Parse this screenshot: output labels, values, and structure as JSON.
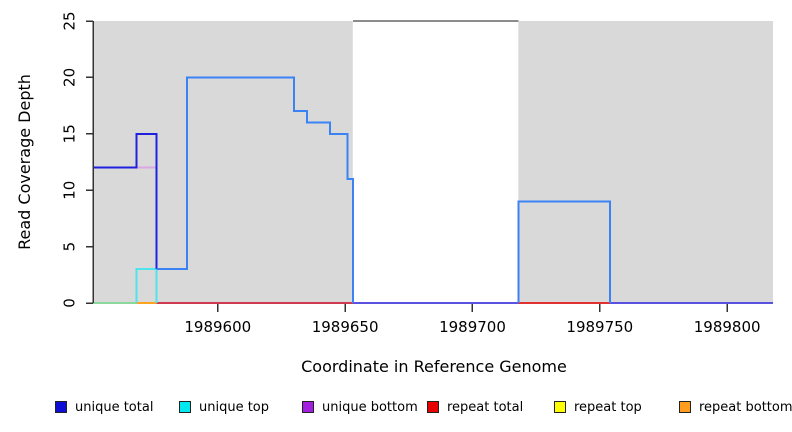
{
  "chart_data": {
    "type": "line",
    "title": "",
    "xlabel": "Coordinate in Reference Genome",
    "ylabel": "Read Coverage Depth",
    "xlim": [
      1989551,
      1989818
    ],
    "ylim": [
      0,
      25
    ],
    "xticks": [
      1989600,
      1989650,
      1989700,
      1989750,
      1989800
    ],
    "yticks": [
      0,
      5,
      10,
      15,
      20,
      25
    ],
    "grid": false,
    "legend_position": "bottom",
    "background_regions": {
      "color": "#d9d9d9",
      "ranges": [
        [
          1989551,
          1989653
        ],
        [
          1989718,
          1989818
        ]
      ]
    },
    "gap_top_line": {
      "color": "#8c8c8c",
      "y": 25,
      "from": 1989653,
      "to": 1989718
    },
    "series": [
      {
        "name": "unique total",
        "color": "#0d0dd6",
        "steps": [
          [
            1989551,
            12
          ],
          [
            1989568,
            15
          ],
          [
            1989576,
            3
          ],
          [
            1989588,
            20
          ],
          [
            1989630,
            17
          ],
          [
            1989635,
            16
          ],
          [
            1989644,
            15
          ],
          [
            1989651,
            11
          ],
          [
            1989653,
            0
          ],
          [
            1989718,
            9
          ],
          [
            1989754,
            0
          ],
          [
            1989818,
            0
          ]
        ]
      },
      {
        "name": "unique top",
        "color": "#00e8f0",
        "steps": [
          [
            1989551,
            0
          ],
          [
            1989568,
            3
          ],
          [
            1989576,
            0
          ],
          [
            1989818,
            0
          ]
        ]
      },
      {
        "name": "unique bottom",
        "color": "#a21fe0",
        "steps": [
          [
            1989551,
            12
          ],
          [
            1989576,
            0
          ],
          [
            1989818,
            0
          ]
        ]
      },
      {
        "name": "repeat total",
        "color": "#e60000",
        "steps": [
          [
            1989551,
            0
          ],
          [
            1989818,
            0
          ]
        ]
      },
      {
        "name": "repeat top",
        "color": "#ffff00",
        "steps": [
          [
            1989551,
            0
          ],
          [
            1989818,
            0
          ]
        ]
      },
      {
        "name": "repeat bottom",
        "color": "#ff9d1e",
        "steps": [
          [
            1989551,
            0
          ],
          [
            1989818,
            0
          ]
        ]
      }
    ],
    "render_segments": [
      {
        "name": "baseline-green",
        "color": "#8cd79c",
        "width": 2,
        "points": [
          [
            1989551,
            0
          ],
          [
            1989568,
            0
          ]
        ]
      },
      {
        "name": "baseline-orange",
        "color": "#ffa41e",
        "width": 2,
        "points": [
          [
            1989568,
            0
          ],
          [
            1989576,
            0
          ]
        ]
      },
      {
        "name": "baseline-crimson",
        "color": "#d03a50",
        "width": 2,
        "points": [
          [
            1989576,
            0
          ],
          [
            1989653,
            0
          ]
        ]
      },
      {
        "name": "baseline-slate-1",
        "color": "#5b51e0",
        "width": 2,
        "points": [
          [
            1989653,
            0
          ],
          [
            1989718,
            0
          ]
        ]
      },
      {
        "name": "baseline-red",
        "color": "#e03030",
        "width": 2,
        "points": [
          [
            1989718,
            0
          ],
          [
            1989754,
            0
          ]
        ]
      },
      {
        "name": "baseline-slate-2",
        "color": "#5b51e0",
        "width": 2,
        "points": [
          [
            1989754,
            0
          ],
          [
            1989818,
            0
          ]
        ]
      },
      {
        "name": "unique-bottom-remnant",
        "color": "#dca6de",
        "width": 2,
        "points": [
          [
            1989568,
            12
          ],
          [
            1989576,
            12
          ]
        ]
      },
      {
        "name": "unique-bottom-drop",
        "color": "#a566e8",
        "width": 2,
        "points": [
          [
            1989576,
            12
          ],
          [
            1989576,
            0
          ]
        ]
      },
      {
        "name": "unique-top-cyan",
        "color": "#4fe3ec",
        "width": 2,
        "points": [
          [
            1989568,
            0
          ],
          [
            1989568,
            3
          ],
          [
            1989576,
            3
          ],
          [
            1989576,
            0
          ]
        ]
      },
      {
        "name": "unique-total-dark",
        "color": "#2121dd",
        "width": 2,
        "points": [
          [
            1989551,
            12
          ],
          [
            1989568,
            12
          ],
          [
            1989568,
            15
          ],
          [
            1989576,
            15
          ],
          [
            1989576,
            3
          ]
        ]
      },
      {
        "name": "coverage-main",
        "color": "#3b82f5",
        "width": 2,
        "points": [
          [
            1989576,
            3
          ],
          [
            1989588,
            3
          ],
          [
            1989588,
            20
          ],
          [
            1989630,
            20
          ],
          [
            1989630,
            17
          ],
          [
            1989635,
            17
          ],
          [
            1989635,
            16
          ],
          [
            1989644,
            16
          ],
          [
            1989644,
            15
          ],
          [
            1989651,
            15
          ],
          [
            1989651,
            11
          ],
          [
            1989653,
            11
          ],
          [
            1989653,
            0
          ]
        ]
      },
      {
        "name": "coverage-block-9",
        "color": "#3b82f5",
        "width": 2,
        "points": [
          [
            1989718,
            0
          ],
          [
            1989718,
            9
          ],
          [
            1989754,
            9
          ],
          [
            1989754,
            0
          ]
        ]
      },
      {
        "name": "gap-top-line",
        "color": "#8c8c8c",
        "width": 2,
        "points": [
          [
            1989653,
            25
          ],
          [
            1989718,
            25
          ]
        ]
      }
    ]
  },
  "axes": {
    "tick_color": "#333333",
    "label_color": "#000000"
  },
  "legend": {
    "items": [
      {
        "label": "unique total",
        "color": "#0d0dd6"
      },
      {
        "label": "unique top",
        "color": "#00e8f0"
      },
      {
        "label": "unique bottom",
        "color": "#a21fe0"
      },
      {
        "label": "repeat total",
        "color": "#e60000"
      },
      {
        "label": "repeat top",
        "color": "#ffff00"
      },
      {
        "label": "repeat bottom",
        "color": "#ff9d1e"
      }
    ]
  }
}
